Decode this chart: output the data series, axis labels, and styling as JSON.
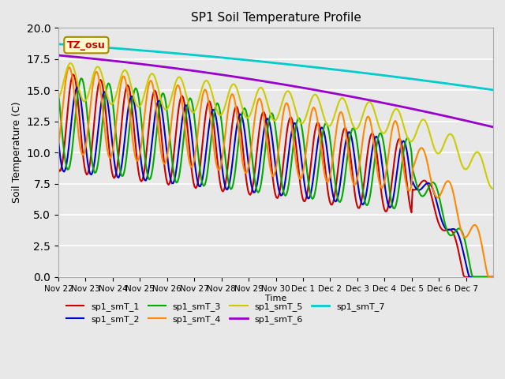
{
  "title": "SP1 Soil Temperature Profile",
  "xlabel": "Time",
  "ylabel": "Soil Temperature (C)",
  "ylim": [
    0,
    20
  ],
  "plot_bg_color": "#e8e8e8",
  "tz_label": "TZ_osu",
  "x_tick_labels": [
    "Nov 22",
    "Nov 23",
    "Nov 24",
    "Nov 25",
    "Nov 26",
    "Nov 27",
    "Nov 28",
    "Nov 29",
    "Nov 30",
    "Dec 1",
    "Dec 2",
    "Dec 3",
    "Dec 4",
    "Dec 5",
    "Dec 6",
    "Dec 7"
  ],
  "series_colors": {
    "sp1_smT_1": "#cc0000",
    "sp1_smT_2": "#0000cc",
    "sp1_smT_3": "#00aa00",
    "sp1_smT_4": "#ff8800",
    "sp1_smT_5": "#cccc00",
    "sp1_smT_6": "#9900cc",
    "sp1_smT_7": "#00cccc"
  },
  "legend_labels": [
    "sp1_smT_1",
    "sp1_smT_2",
    "sp1_smT_3",
    "sp1_smT_4",
    "sp1_smT_5",
    "sp1_smT_6",
    "sp1_smT_7"
  ]
}
